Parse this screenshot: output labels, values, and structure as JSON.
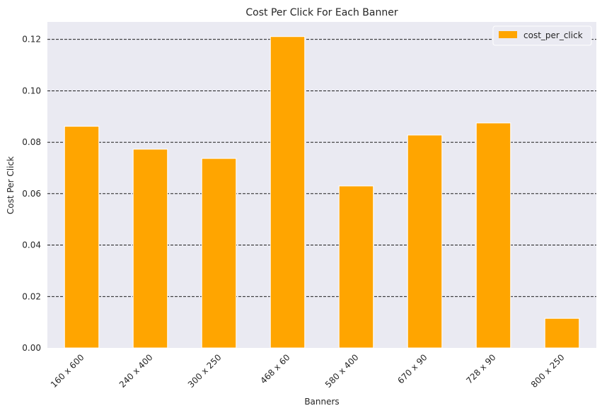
{
  "chart_data": {
    "type": "bar",
    "title": "Cost Per Click For Each Banner",
    "xlabel": "Banners",
    "ylabel": "Cost Per Click",
    "categories": [
      "160 x 600",
      "240 x 400",
      "300 x 250",
      "468 x 60",
      "580 x 400",
      "670 x 90",
      "728 x 90",
      "800 x 250"
    ],
    "series": [
      {
        "name": "cost_per_click",
        "values": [
          0.0862,
          0.0773,
          0.0737,
          0.1211,
          0.063,
          0.0828,
          0.0875,
          0.0115
        ],
        "color": "#FFA500"
      }
    ],
    "ylim": [
      0,
      0.1268
    ],
    "yticks": [
      0.0,
      0.02,
      0.04,
      0.06,
      0.08,
      0.1,
      0.12
    ],
    "ytick_labels": [
      "0.00",
      "0.02",
      "0.04",
      "0.06",
      "0.08",
      "0.10",
      "0.12"
    ],
    "grid": "y-dashed",
    "legend_position": "top-right",
    "background": "#EAEAF2",
    "grid_color": "#000000"
  }
}
